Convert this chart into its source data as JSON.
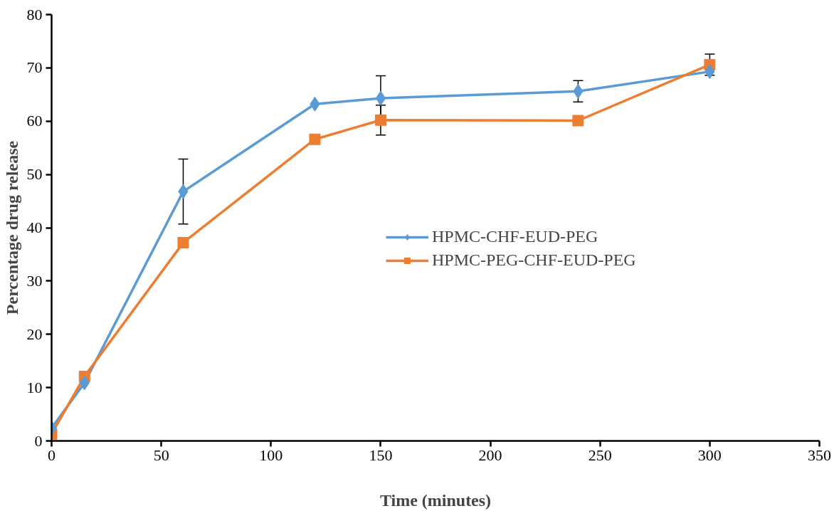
{
  "chart_data": {
    "type": "line",
    "xlabel": "Time (minutes)",
    "ylabel": "Percentage drug release",
    "x": [
      0,
      15,
      60,
      120,
      150,
      240,
      300
    ],
    "series": [
      {
        "name": "HPMC-CHF-EUD-PEG",
        "color": "#5b9bd5",
        "marker": "diamond",
        "values": [
          2.4,
          10.9,
          46.8,
          63.2,
          64.3,
          65.6,
          69.3
        ],
        "errors": [
          null,
          null,
          6.1,
          null,
          4.2,
          2,
          null
        ]
      },
      {
        "name": "HPMC-PEG-CHF-EUD-PEG",
        "color": "#ed7d31",
        "marker": "square",
        "values": [
          1.3,
          12.1,
          37.2,
          56.6,
          60.2,
          60.1,
          70.6
        ],
        "errors": [
          null,
          null,
          null,
          null,
          2.8,
          null,
          2
        ]
      }
    ],
    "xlim": [
      0,
      350
    ],
    "xticks": [
      0,
      50,
      100,
      150,
      200,
      250,
      300,
      350
    ],
    "ylim": [
      0,
      80
    ],
    "yticks": [
      0,
      10,
      20,
      30,
      40,
      50,
      60,
      70,
      80
    ],
    "grid": false,
    "legend": "right",
    "line_style": "solid"
  }
}
